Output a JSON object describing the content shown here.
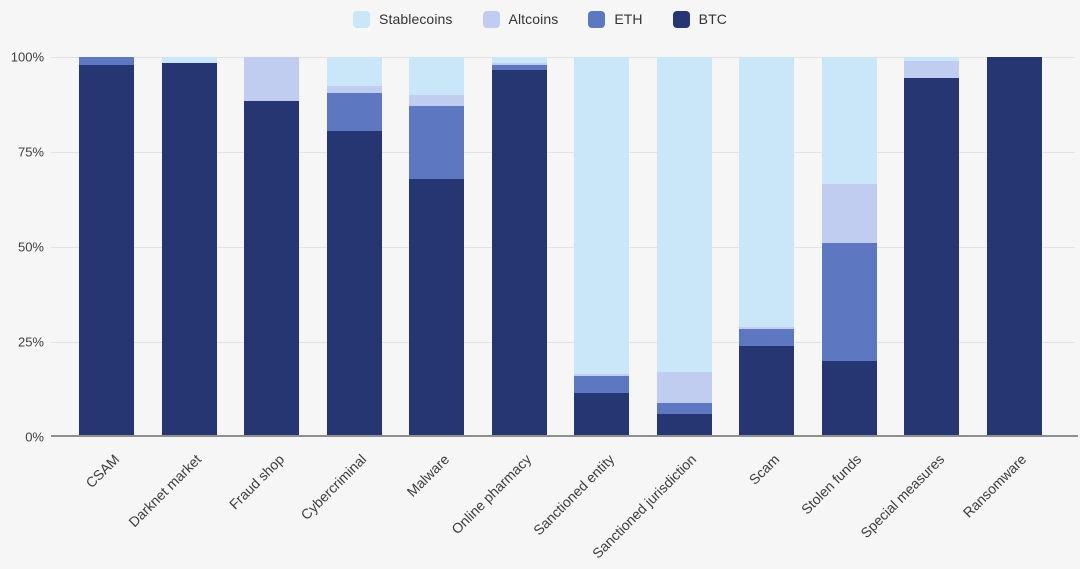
{
  "legend": {
    "items": [
      {
        "label": "Stablecoins",
        "color": "#c9e7f8"
      },
      {
        "label": "Altcoins",
        "color": "#c0cdf0"
      },
      {
        "label": "ETH",
        "color": "#5d77c1"
      },
      {
        "label": "BTC",
        "color": "#253672"
      }
    ]
  },
  "chart_data": {
    "type": "bar",
    "stacked": true,
    "units": "percent",
    "categories": [
      "CSAM",
      "Darknet market",
      "Fraud shop",
      "Cybercriminal",
      "Malware",
      "Online pharmacy",
      "Sanctioned entity",
      "Sanctioned jurisdiction",
      "Scam",
      "Stolen funds",
      "Special measures",
      "Ransomware"
    ],
    "series": [
      {
        "name": "Stablecoins",
        "color": "#c9e7f8",
        "values": [
          0,
          1.5,
          0,
          7.5,
          10,
          1.5,
          83.5,
          83,
          71,
          33.5,
          1,
          0
        ]
      },
      {
        "name": "Altcoins",
        "color": "#c0cdf0",
        "values": [
          0,
          0,
          11.5,
          2,
          3,
          0.5,
          0.5,
          8,
          0.5,
          15.5,
          4.5,
          0
        ]
      },
      {
        "name": "ETH",
        "color": "#5d77c1",
        "values": [
          2,
          0,
          0,
          10,
          19,
          1.5,
          4.5,
          3,
          4.5,
          31,
          0,
          0
        ]
      },
      {
        "name": "BTC",
        "color": "#253672",
        "values": [
          98,
          98.5,
          88.5,
          80.5,
          68,
          96.5,
          11.5,
          6,
          24,
          20,
          94.5,
          100
        ]
      }
    ],
    "title": "",
    "xlabel": "",
    "ylabel": "",
    "ylim": [
      0,
      100
    ],
    "y_ticks": [
      "0%",
      "25%",
      "50%",
      "75%",
      "100%"
    ],
    "grid": true,
    "legend_position": "top",
    "bar_order_bottom_to_top": [
      "BTC",
      "ETH",
      "Altcoins",
      "Stablecoins"
    ]
  }
}
